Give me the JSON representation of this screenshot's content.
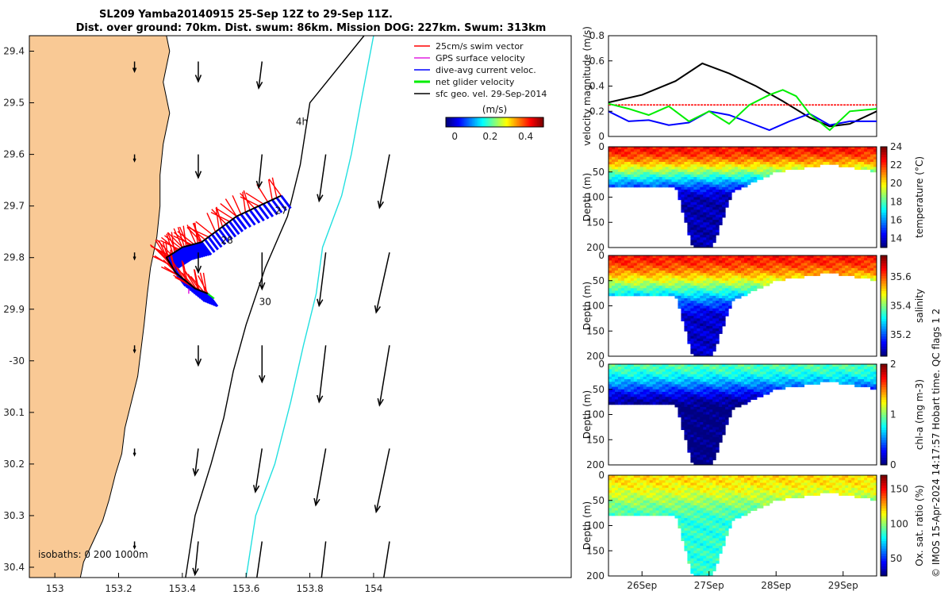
{
  "title": {
    "line1": "SL209 Yamba20140915 25-Sep 12Z to 29-Sep 11Z.",
    "line2": "Dist. over ground: 70km. Dist. swum: 86km. Mission DOG: 227km. Swum: 313km"
  },
  "credit": "© IMOS 15-Apr-2024 14:17:57 Hobart time. QC flags 1  2",
  "colors": {
    "land": "#f9c995",
    "isobath_200": "#000000",
    "isobath_1000": "#22e0e0",
    "swim": "#ff0000",
    "gps": "#e020e0",
    "current": "#0000ff",
    "net": "#00ee00",
    "sfc": "#000000"
  },
  "chart_data": [
    {
      "id": "map",
      "type": "scatter",
      "xlim": [
        152.92,
        154.62
      ],
      "ylim": [
        -30.42,
        -29.37
      ],
      "xticks": [
        153,
        153.2,
        153.4,
        153.6,
        153.8,
        154
      ],
      "xtick_labels": [
        "153",
        "153.2",
        "153.4",
        "153.6",
        "153.8",
        "154"
      ],
      "yticks": [
        -29.4,
        -29.5,
        -29.6,
        -29.7,
        -29.8,
        -29.9,
        -30.0,
        -30.1,
        -30.2,
        -30.3,
        -30.4
      ],
      "ytick_labels": [
        "29.4",
        "29.5",
        "29.6",
        "29.7",
        "29.8",
        "29.9",
        "-30",
        "30.1",
        "30.2",
        "30.3",
        "30.4"
      ],
      "coastline": [
        [
          152.92,
          -29.37
        ],
        [
          153.35,
          -29.37
        ],
        [
          153.36,
          -29.4
        ],
        [
          153.34,
          -29.46
        ],
        [
          153.36,
          -29.52
        ],
        [
          153.34,
          -29.58
        ],
        [
          153.33,
          -29.64
        ],
        [
          153.33,
          -29.7
        ],
        [
          153.32,
          -29.76
        ],
        [
          153.3,
          -29.82
        ],
        [
          153.29,
          -29.87
        ],
        [
          153.28,
          -29.93
        ],
        [
          153.27,
          -29.98
        ],
        [
          153.26,
          -30.03
        ],
        [
          153.24,
          -30.08
        ],
        [
          153.22,
          -30.13
        ],
        [
          153.21,
          -30.18
        ],
        [
          153.19,
          -30.22
        ],
        [
          153.17,
          -30.27
        ],
        [
          153.15,
          -30.31
        ],
        [
          153.12,
          -30.35
        ],
        [
          153.09,
          -30.39
        ],
        [
          153.08,
          -30.42
        ],
        [
          152.92,
          -30.42
        ]
      ],
      "isobath_200": [
        [
          153.97,
          -29.37
        ],
        [
          153.8,
          -29.5
        ],
        [
          153.77,
          -29.62
        ],
        [
          153.73,
          -29.72
        ],
        [
          153.66,
          -29.82
        ],
        [
          153.6,
          -29.93
        ],
        [
          153.56,
          -30.02
        ],
        [
          153.53,
          -30.11
        ],
        [
          153.49,
          -30.2
        ],
        [
          153.44,
          -30.3
        ],
        [
          153.41,
          -30.42
        ]
      ],
      "isobath_1000": [
        [
          154.0,
          -29.37
        ],
        [
          153.96,
          -29.5
        ],
        [
          153.93,
          -29.6
        ],
        [
          153.9,
          -29.68
        ],
        [
          153.84,
          -29.78
        ],
        [
          153.82,
          -29.87
        ],
        [
          153.78,
          -29.97
        ],
        [
          153.74,
          -30.08
        ],
        [
          153.69,
          -30.2
        ],
        [
          153.63,
          -30.3
        ],
        [
          153.6,
          -30.42
        ]
      ],
      "glider_track": [
        [
          153.71,
          -29.68
        ],
        [
          153.57,
          -29.72
        ],
        [
          153.46,
          -29.77
        ],
        [
          153.4,
          -29.78
        ],
        [
          153.35,
          -29.8
        ],
        [
          153.38,
          -29.83
        ],
        [
          153.44,
          -29.86
        ],
        [
          153.48,
          -29.87
        ]
      ],
      "day_labels": [
        {
          "text": "27",
          "lon": 153.71,
          "lat": -29.715
        },
        {
          "text": "28",
          "lon": 153.54,
          "lat": -29.773
        },
        {
          "text": "30",
          "lon": 153.66,
          "lat": -29.892
        },
        {
          "text": "4h",
          "lon": 153.775,
          "lat": -29.543
        }
      ],
      "sfc_vectors": {
        "lons": [
          153.25,
          153.45,
          153.65,
          153.85,
          154.05
        ],
        "lats": [
          -29.42,
          -29.6,
          -29.79,
          -29.97,
          -30.17,
          -30.35
        ],
        "u": [
          [
            0.0,
            0.0,
            -0.01,
            0.0,
            0.0
          ],
          [
            0.0,
            0.0,
            -0.01,
            -0.02,
            -0.03
          ],
          [
            0.0,
            0.0,
            0.0,
            -0.02,
            -0.04
          ],
          [
            0.0,
            0.0,
            0.0,
            -0.02,
            -0.03
          ],
          [
            0.0,
            -0.01,
            -0.02,
            -0.03,
            -0.04
          ],
          [
            0.0,
            -0.01,
            -0.02,
            -0.02,
            -0.03
          ]
        ],
        "v": [
          [
            -0.03,
            -0.06,
            -0.08,
            0.0,
            0.0
          ],
          [
            -0.02,
            -0.07,
            -0.1,
            -0.14,
            -0.16
          ],
          [
            -0.02,
            -0.06,
            -0.11,
            -0.16,
            -0.18
          ],
          [
            -0.02,
            -0.06,
            -0.11,
            -0.17,
            -0.18
          ],
          [
            -0.02,
            -0.08,
            -0.13,
            -0.17,
            -0.19
          ],
          [
            -0.02,
            -0.1,
            -0.14,
            -0.17,
            -0.19
          ]
        ]
      },
      "legend": [
        {
          "label": "25cm/s swim vector",
          "color_key": "swim"
        },
        {
          "label": "GPS surface velocity",
          "color_key": "gps"
        },
        {
          "label": "dive-avg current veloc.",
          "color_key": "current"
        },
        {
          "label": "net glider velocity",
          "color_key": "net"
        },
        {
          "label": "sfc geo. vel. 29-Sep-2014",
          "color_key": "sfc"
        }
      ],
      "colorbar": {
        "label": "(m/s)",
        "ticks": [
          0,
          0.2,
          0.4
        ],
        "range": [
          -0.05,
          0.5
        ],
        "colormap": "jet"
      },
      "isobath_label": "isobaths: 0   200  1000m"
    },
    {
      "id": "velocity",
      "type": "line",
      "ylabel": "velocity magnitude (m/s)",
      "xlim": [
        25.5,
        29.5
      ],
      "ylim": [
        0,
        0.8
      ],
      "yticks": [
        0,
        0.2,
        0.4,
        0.6,
        0.8
      ],
      "ytick_labels": [
        "0",
        "0.2",
        "0.4",
        "0.6",
        "0.8"
      ],
      "series": [
        {
          "name": "surface geostrophic",
          "color_key": "sfc",
          "x": [
            25.5,
            26.0,
            26.5,
            26.9,
            27.3,
            27.7,
            28.1,
            28.5,
            28.8,
            29.1,
            29.5
          ],
          "y": [
            0.27,
            0.33,
            0.44,
            0.58,
            0.5,
            0.4,
            0.28,
            0.15,
            0.08,
            0.1,
            0.2
          ]
        },
        {
          "name": "swim",
          "color_key": "swim",
          "x": [
            25.5,
            29.5
          ],
          "y": [
            0.25,
            0.25
          ]
        },
        {
          "name": "dive-avg current",
          "color_key": "current",
          "x": [
            25.5,
            25.8,
            26.1,
            26.4,
            26.7,
            27.0,
            27.3,
            27.6,
            27.9,
            28.2,
            28.5,
            28.8,
            29.1,
            29.5
          ],
          "y": [
            0.2,
            0.12,
            0.13,
            0.09,
            0.11,
            0.2,
            0.17,
            0.11,
            0.05,
            0.12,
            0.18,
            0.09,
            0.12,
            0.12
          ]
        },
        {
          "name": "net glider",
          "color_key": "net",
          "x": [
            25.5,
            25.8,
            26.1,
            26.4,
            26.7,
            27.0,
            27.3,
            27.6,
            27.9,
            28.1,
            28.3,
            28.5,
            28.8,
            29.1,
            29.5
          ],
          "y": [
            0.26,
            0.22,
            0.17,
            0.24,
            0.12,
            0.2,
            0.1,
            0.25,
            0.33,
            0.37,
            0.32,
            0.18,
            0.05,
            0.2,
            0.22
          ]
        }
      ]
    },
    {
      "id": "temperature",
      "type": "heatmap",
      "ylabel": "Depth (m)",
      "cbar_label": "temperature (°C)",
      "clim": [
        13,
        24
      ],
      "cbar_ticks": [
        14,
        16,
        18,
        20,
        22,
        24
      ],
      "y_range": [
        0,
        200
      ],
      "yticks": [
        0,
        50,
        100,
        150,
        200
      ],
      "surface_value": 22.5,
      "deep_value": 13.5,
      "gradient_depth": 110
    },
    {
      "id": "salinity",
      "type": "heatmap",
      "ylabel": "Depth (m)",
      "cbar_label": "salinity",
      "clim": [
        35.05,
        35.75
      ],
      "cbar_ticks": [
        35.2,
        35.4,
        35.6
      ],
      "y_range": [
        0,
        200
      ],
      "yticks": [
        0,
        50,
        100,
        150,
        200
      ],
      "surface_value": 35.65,
      "deep_value": 35.1,
      "gradient_depth": 130
    },
    {
      "id": "chlorophyll",
      "type": "heatmap",
      "ylabel": "Depth (m)",
      "cbar_label": "chl-a (mg m-3)",
      "clim": [
        0,
        2
      ],
      "cbar_ticks": [
        0,
        1,
        2
      ],
      "y_range": [
        0,
        200
      ],
      "yticks": [
        0,
        50,
        100,
        150,
        200
      ],
      "surface_value": 0.9,
      "deep_value": 0.0,
      "gradient_depth": 90
    },
    {
      "id": "oxygen",
      "type": "heatmap",
      "ylabel": "Depth (m)",
      "cbar_label": "Ox. sat. ratio (%)",
      "clim": [
        25,
        170
      ],
      "cbar_ticks": [
        50,
        100,
        150
      ],
      "y_range": [
        0,
        200
      ],
      "yticks": [
        0,
        50,
        100,
        150,
        200
      ],
      "surface_value": 120,
      "deep_value": 85,
      "gradient_depth": 100
    },
    {
      "id": "time_axis",
      "type": "line",
      "xticks": [
        26,
        27,
        28,
        29
      ],
      "xtick_labels": [
        "26Sep",
        "27Sep",
        "28Sep",
        "29Sep"
      ]
    }
  ]
}
